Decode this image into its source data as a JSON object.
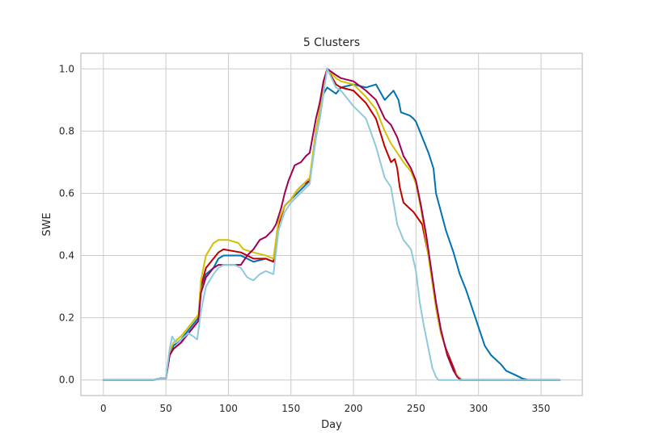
{
  "chart_data": {
    "type": "line",
    "title": "5 Clusters",
    "xlabel": "Day",
    "ylabel": "SWE",
    "xlim": [
      -18,
      383
    ],
    "ylim": [
      -0.05,
      1.05
    ],
    "x_ticks": [
      0,
      50,
      100,
      150,
      200,
      250,
      300,
      350
    ],
    "y_ticks": [
      0.0,
      0.2,
      0.4,
      0.6,
      0.8,
      1.0
    ],
    "x_tick_labels": [
      "0",
      "50",
      "100",
      "150",
      "200",
      "250",
      "300",
      "350"
    ],
    "y_tick_labels": [
      "0.0",
      "0.2",
      "0.4",
      "0.6",
      "0.8",
      "1.0"
    ],
    "grid": true,
    "legend": "none",
    "series": [
      {
        "color": "#0072B2",
        "points": [
          [
            0,
            0
          ],
          [
            40,
            0
          ],
          [
            45,
            0.005
          ],
          [
            50,
            0.005
          ],
          [
            53,
            0.08
          ],
          [
            56,
            0.11
          ],
          [
            62,
            0.13
          ],
          [
            68,
            0.16
          ],
          [
            72,
            0.18
          ],
          [
            76,
            0.2
          ],
          [
            78,
            0.3
          ],
          [
            82,
            0.34
          ],
          [
            88,
            0.36
          ],
          [
            92,
            0.39
          ],
          [
            96,
            0.4
          ],
          [
            110,
            0.4
          ],
          [
            115,
            0.39
          ],
          [
            120,
            0.38
          ],
          [
            130,
            0.39
          ],
          [
            136,
            0.38
          ],
          [
            140,
            0.5
          ],
          [
            145,
            0.56
          ],
          [
            150,
            0.58
          ],
          [
            155,
            0.6
          ],
          [
            160,
            0.62
          ],
          [
            165,
            0.64
          ],
          [
            170,
            0.78
          ],
          [
            173,
            0.84
          ],
          [
            176,
            0.92
          ],
          [
            179,
            0.94
          ],
          [
            186,
            0.92
          ],
          [
            190,
            0.94
          ],
          [
            200,
            0.95
          ],
          [
            210,
            0.94
          ],
          [
            218,
            0.95
          ],
          [
            225,
            0.9
          ],
          [
            232,
            0.93
          ],
          [
            236,
            0.9
          ],
          [
            238,
            0.86
          ],
          [
            245,
            0.85
          ],
          [
            248,
            0.84
          ],
          [
            250,
            0.83
          ],
          [
            255,
            0.78
          ],
          [
            260,
            0.73
          ],
          [
            264,
            0.68
          ],
          [
            266,
            0.6
          ],
          [
            270,
            0.54
          ],
          [
            274,
            0.48
          ],
          [
            280,
            0.41
          ],
          [
            285,
            0.34
          ],
          [
            290,
            0.29
          ],
          [
            295,
            0.23
          ],
          [
            300,
            0.17
          ],
          [
            305,
            0.11
          ],
          [
            310,
            0.08
          ],
          [
            318,
            0.05
          ],
          [
            322,
            0.03
          ],
          [
            330,
            0.015
          ],
          [
            335,
            0.005
          ],
          [
            340,
            0
          ],
          [
            365,
            0
          ]
        ]
      },
      {
        "color": "#C00000",
        "points": [
          [
            0,
            0
          ],
          [
            40,
            0
          ],
          [
            45,
            0.005
          ],
          [
            50,
            0.005
          ],
          [
            53,
            0.08
          ],
          [
            56,
            0.1
          ],
          [
            62,
            0.12
          ],
          [
            68,
            0.15
          ],
          [
            72,
            0.17
          ],
          [
            76,
            0.19
          ],
          [
            78,
            0.3
          ],
          [
            82,
            0.36
          ],
          [
            88,
            0.39
          ],
          [
            92,
            0.41
          ],
          [
            96,
            0.42
          ],
          [
            110,
            0.41
          ],
          [
            115,
            0.4
          ],
          [
            120,
            0.39
          ],
          [
            130,
            0.39
          ],
          [
            136,
            0.38
          ],
          [
            140,
            0.5
          ],
          [
            145,
            0.56
          ],
          [
            150,
            0.58
          ],
          [
            155,
            0.61
          ],
          [
            160,
            0.63
          ],
          [
            165,
            0.64
          ],
          [
            170,
            0.8
          ],
          [
            173,
            0.86
          ],
          [
            176,
            0.94
          ],
          [
            179,
            1.0
          ],
          [
            186,
            0.95
          ],
          [
            190,
            0.94
          ],
          [
            200,
            0.93
          ],
          [
            210,
            0.89
          ],
          [
            218,
            0.84
          ],
          [
            225,
            0.75
          ],
          [
            230,
            0.7
          ],
          [
            233,
            0.71
          ],
          [
            235,
            0.68
          ],
          [
            237,
            0.62
          ],
          [
            240,
            0.57
          ],
          [
            248,
            0.54
          ],
          [
            255,
            0.5
          ],
          [
            260,
            0.4
          ],
          [
            264,
            0.3
          ],
          [
            267,
            0.21
          ],
          [
            270,
            0.15
          ],
          [
            274,
            0.1
          ],
          [
            278,
            0.06
          ],
          [
            282,
            0.02
          ],
          [
            285,
            0
          ],
          [
            365,
            0
          ]
        ]
      },
      {
        "color": "#D4C000",
        "points": [
          [
            0,
            0
          ],
          [
            40,
            0
          ],
          [
            45,
            0.005
          ],
          [
            50,
            0.005
          ],
          [
            53,
            0.09
          ],
          [
            56,
            0.12
          ],
          [
            62,
            0.14
          ],
          [
            68,
            0.17
          ],
          [
            72,
            0.19
          ],
          [
            76,
            0.21
          ],
          [
            78,
            0.32
          ],
          [
            82,
            0.4
          ],
          [
            88,
            0.44
          ],
          [
            92,
            0.45
          ],
          [
            100,
            0.45
          ],
          [
            108,
            0.44
          ],
          [
            112,
            0.42
          ],
          [
            120,
            0.41
          ],
          [
            130,
            0.4
          ],
          [
            136,
            0.39
          ],
          [
            140,
            0.51
          ],
          [
            145,
            0.56
          ],
          [
            150,
            0.58
          ],
          [
            155,
            0.61
          ],
          [
            160,
            0.63
          ],
          [
            165,
            0.65
          ],
          [
            170,
            0.8
          ],
          [
            173,
            0.87
          ],
          [
            176,
            0.95
          ],
          [
            179,
            1.0
          ],
          [
            186,
            0.97
          ],
          [
            190,
            0.96
          ],
          [
            200,
            0.95
          ],
          [
            210,
            0.91
          ],
          [
            218,
            0.87
          ],
          [
            225,
            0.8
          ],
          [
            230,
            0.76
          ],
          [
            235,
            0.73
          ],
          [
            240,
            0.7
          ],
          [
            246,
            0.67
          ],
          [
            250,
            0.63
          ],
          [
            254,
            0.55
          ],
          [
            258,
            0.45
          ],
          [
            262,
            0.34
          ],
          [
            266,
            0.23
          ],
          [
            270,
            0.15
          ],
          [
            276,
            0.07
          ],
          [
            280,
            0.03
          ],
          [
            284,
            0.01
          ],
          [
            287,
            0
          ],
          [
            365,
            0
          ]
        ]
      },
      {
        "color": "#A0004F",
        "points": [
          [
            0,
            0
          ],
          [
            40,
            0
          ],
          [
            45,
            0.005
          ],
          [
            50,
            0.005
          ],
          [
            53,
            0.08
          ],
          [
            56,
            0.1
          ],
          [
            62,
            0.12
          ],
          [
            68,
            0.15
          ],
          [
            72,
            0.17
          ],
          [
            76,
            0.19
          ],
          [
            78,
            0.28
          ],
          [
            82,
            0.33
          ],
          [
            88,
            0.36
          ],
          [
            92,
            0.37
          ],
          [
            100,
            0.37
          ],
          [
            110,
            0.37
          ],
          [
            115,
            0.4
          ],
          [
            120,
            0.42
          ],
          [
            125,
            0.45
          ],
          [
            130,
            0.46
          ],
          [
            135,
            0.48
          ],
          [
            138,
            0.5
          ],
          [
            142,
            0.55
          ],
          [
            145,
            0.6
          ],
          [
            148,
            0.64
          ],
          [
            150,
            0.66
          ],
          [
            153,
            0.69
          ],
          [
            158,
            0.7
          ],
          [
            162,
            0.72
          ],
          [
            165,
            0.73
          ],
          [
            170,
            0.84
          ],
          [
            173,
            0.89
          ],
          [
            176,
            0.96
          ],
          [
            179,
            1.0
          ],
          [
            186,
            0.98
          ],
          [
            190,
            0.97
          ],
          [
            200,
            0.96
          ],
          [
            210,
            0.93
          ],
          [
            218,
            0.9
          ],
          [
            225,
            0.84
          ],
          [
            230,
            0.82
          ],
          [
            235,
            0.78
          ],
          [
            240,
            0.72
          ],
          [
            246,
            0.68
          ],
          [
            250,
            0.64
          ],
          [
            254,
            0.56
          ],
          [
            258,
            0.47
          ],
          [
            262,
            0.36
          ],
          [
            266,
            0.25
          ],
          [
            270,
            0.16
          ],
          [
            275,
            0.08
          ],
          [
            280,
            0.03
          ],
          [
            283,
            0.01
          ],
          [
            286,
            0
          ],
          [
            365,
            0
          ]
        ]
      },
      {
        "color": "#8EC9DC",
        "points": [
          [
            0,
            0
          ],
          [
            40,
            0
          ],
          [
            45,
            0.005
          ],
          [
            50,
            0.005
          ],
          [
            53,
            0.1
          ],
          [
            55,
            0.14
          ],
          [
            58,
            0.12
          ],
          [
            62,
            0.13
          ],
          [
            68,
            0.15
          ],
          [
            72,
            0.14
          ],
          [
            75,
            0.13
          ],
          [
            78,
            0.22
          ],
          [
            82,
            0.3
          ],
          [
            88,
            0.34
          ],
          [
            92,
            0.36
          ],
          [
            96,
            0.37
          ],
          [
            105,
            0.37
          ],
          [
            110,
            0.36
          ],
          [
            115,
            0.33
          ],
          [
            120,
            0.32
          ],
          [
            125,
            0.34
          ],
          [
            130,
            0.35
          ],
          [
            136,
            0.34
          ],
          [
            140,
            0.48
          ],
          [
            145,
            0.54
          ],
          [
            150,
            0.57
          ],
          [
            155,
            0.59
          ],
          [
            160,
            0.61
          ],
          [
            165,
            0.63
          ],
          [
            170,
            0.78
          ],
          [
            173,
            0.84
          ],
          [
            176,
            0.92
          ],
          [
            179,
            1.0
          ],
          [
            186,
            0.94
          ],
          [
            190,
            0.93
          ],
          [
            200,
            0.88
          ],
          [
            210,
            0.84
          ],
          [
            218,
            0.75
          ],
          [
            225,
            0.65
          ],
          [
            230,
            0.62
          ],
          [
            235,
            0.5
          ],
          [
            240,
            0.45
          ],
          [
            246,
            0.42
          ],
          [
            250,
            0.35
          ],
          [
            253,
            0.25
          ],
          [
            256,
            0.18
          ],
          [
            260,
            0.1
          ],
          [
            263,
            0.04
          ],
          [
            266,
            0.01
          ],
          [
            268,
            0
          ],
          [
            365,
            0
          ]
        ]
      }
    ]
  }
}
